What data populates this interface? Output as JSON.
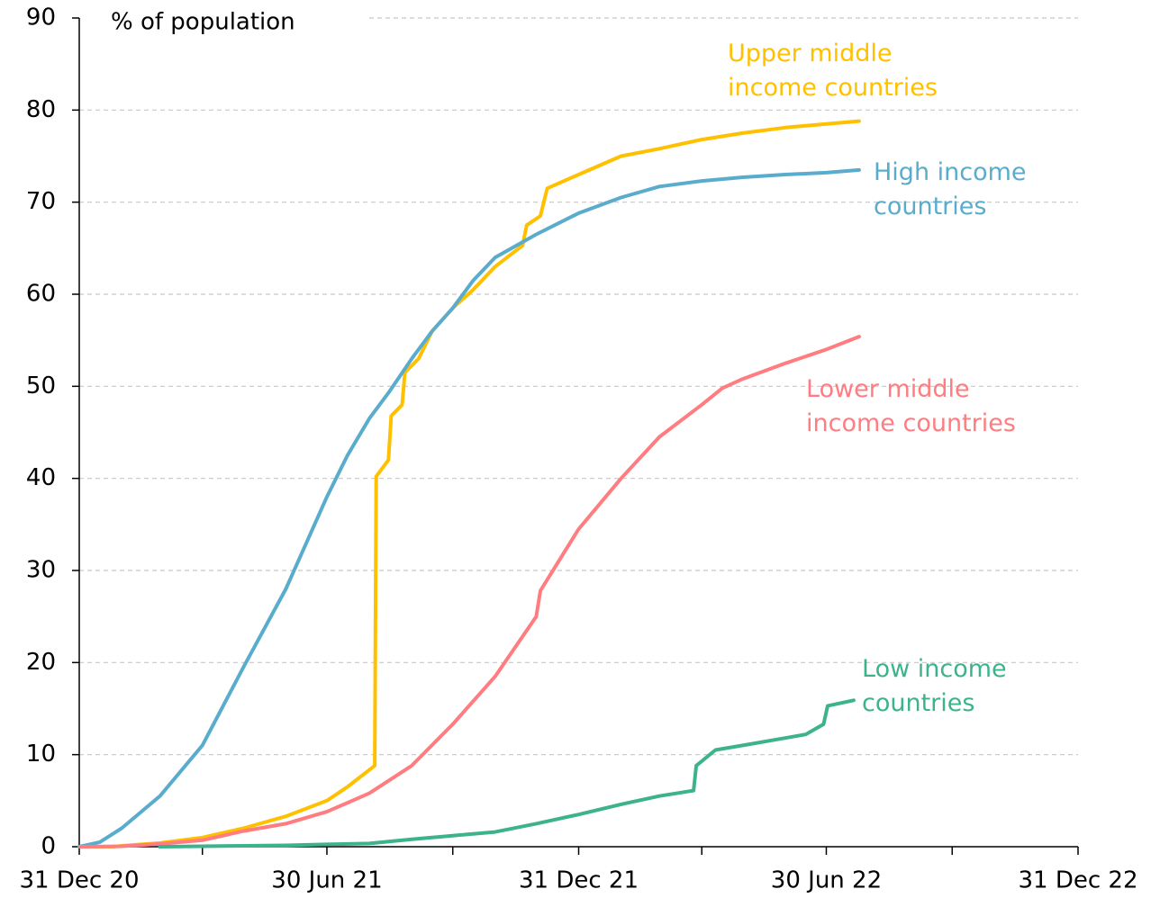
{
  "chart_data": {
    "type": "line",
    "y_label": "% of population",
    "ylim": [
      0,
      90
    ],
    "yticks": [
      0,
      10,
      20,
      30,
      40,
      50,
      60,
      70,
      80,
      90
    ],
    "grid": true,
    "xlim": [
      "2020-12-31",
      "2022-12-31"
    ],
    "xticks": [
      {
        "value": "2020-12-31",
        "label": "31 Dec 20"
      },
      {
        "value": "2021-06-30",
        "label": "30 Jun 21"
      },
      {
        "value": "2021-12-31",
        "label": "31 Dec 21"
      },
      {
        "value": "2022-06-30",
        "label": "30 Jun 22"
      },
      {
        "value": "2022-12-31",
        "label": "31 Dec 22"
      }
    ],
    "xminorticks": [
      "2021-03-31",
      "2021-09-30",
      "2022-03-31",
      "2022-09-30"
    ],
    "series": [
      {
        "name": "Upper middle\nincome countries",
        "color": "#ffc000",
        "x": [
          "2020-12-31",
          "2021-01-25",
          "2021-01-31",
          "2021-02-28",
          "2021-03-31",
          "2021-04-30",
          "2021-05-31",
          "2021-06-30",
          "2021-07-15",
          "2021-08-04",
          "2021-08-05",
          "2021-08-14",
          "2021-08-16",
          "2021-08-24",
          "2021-08-26",
          "2021-09-05",
          "2021-09-15",
          "2021-09-30",
          "2021-10-15",
          "2021-10-31",
          "2021-11-20",
          "2021-11-23",
          "2021-12-03",
          "2021-12-08",
          "2021-12-31",
          "2022-01-31",
          "2022-02-28",
          "2022-03-31",
          "2022-04-30",
          "2022-05-31",
          "2022-06-30",
          "2022-07-24"
        ],
        "values": [
          0,
          0,
          0.1,
          0.4,
          1,
          2,
          3.3,
          5,
          6.5,
          8.8,
          40.2,
          42,
          46.8,
          48,
          51.5,
          53,
          56,
          58.5,
          60.5,
          63,
          65.3,
          67.5,
          68.5,
          71.5,
          73,
          75,
          75.8,
          76.8,
          77.5,
          78.1,
          78.5,
          78.8
        ]
      },
      {
        "name": "High income\ncountries",
        "color": "#5aaccc",
        "x": [
          "2020-12-31",
          "2021-01-15",
          "2021-01-31",
          "2021-02-28",
          "2021-03-31",
          "2021-04-30",
          "2021-05-31",
          "2021-06-15",
          "2021-06-30",
          "2021-07-15",
          "2021-07-31",
          "2021-08-15",
          "2021-08-31",
          "2021-09-15",
          "2021-09-30",
          "2021-10-15",
          "2021-10-31",
          "2021-11-30",
          "2021-12-31",
          "2022-01-31",
          "2022-02-28",
          "2022-03-31",
          "2022-04-30",
          "2022-05-31",
          "2022-06-30",
          "2022-07-24"
        ],
        "values": [
          0,
          0.5,
          2,
          5.5,
          11,
          19.5,
          28,
          33,
          38,
          42.5,
          46.5,
          49.5,
          53,
          56,
          58.5,
          61.5,
          64,
          66.5,
          68.8,
          70.5,
          71.7,
          72.3,
          72.7,
          73,
          73.2,
          73.5
        ]
      },
      {
        "name": "Lower middle\nincome countries",
        "color": "#ff7c80",
        "x": [
          "2021-01-01",
          "2021-01-31",
          "2021-02-28",
          "2021-03-31",
          "2021-04-30",
          "2021-05-31",
          "2021-06-30",
          "2021-07-31",
          "2021-08-31",
          "2021-09-30",
          "2021-10-31",
          "2021-11-30",
          "2021-12-03",
          "2021-12-31",
          "2022-01-31",
          "2022-02-28",
          "2022-03-31",
          "2022-04-15",
          "2022-04-30",
          "2022-05-31",
          "2022-06-30",
          "2022-07-24"
        ],
        "values": [
          0,
          0.05,
          0.3,
          0.7,
          1.7,
          2.5,
          3.8,
          5.8,
          8.8,
          13.3,
          18.5,
          25,
          27.8,
          34.5,
          40,
          44.5,
          48,
          49.8,
          50.8,
          52.5,
          54,
          55.4
        ]
      },
      {
        "name": "Low income\ncountries",
        "color": "#3cb38c",
        "x": [
          "2021-02-28",
          "2021-03-31",
          "2021-04-30",
          "2021-05-31",
          "2021-06-30",
          "2021-07-31",
          "2021-08-31",
          "2021-09-30",
          "2021-10-31",
          "2021-11-30",
          "2021-12-31",
          "2022-01-31",
          "2022-02-28",
          "2022-03-25",
          "2022-03-27",
          "2022-04-10",
          "2022-04-30",
          "2022-05-31",
          "2022-06-15",
          "2022-06-28",
          "2022-07-01",
          "2022-07-20"
        ],
        "values": [
          0,
          0.05,
          0.1,
          0.15,
          0.25,
          0.35,
          0.8,
          1.2,
          1.6,
          2.5,
          3.5,
          4.6,
          5.5,
          6.1,
          8.8,
          10.5,
          11,
          11.8,
          12.2,
          13.3,
          15.3,
          15.9
        ]
      }
    ]
  }
}
